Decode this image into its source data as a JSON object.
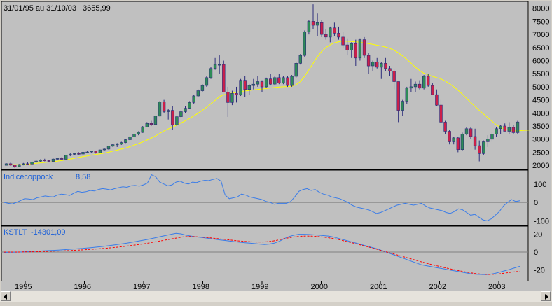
{
  "header": {
    "range_label": "31/01/95 au 31/10/03",
    "last_value": "3655,99"
  },
  "colors": {
    "plot_bg": "#c0c0c0",
    "candle_up": "#2e8b57",
    "candle_down": "#cc1f4a",
    "candle_wick": "#2b2b7a",
    "ma_line": "#ffff00",
    "indicator_line": "#3a7ce8",
    "signal_line": "#ff0000",
    "zero_line": "#808080"
  },
  "chart_data": [
    {
      "type": "candlestick",
      "name_label": "",
      "x_axis": {
        "tick_labels": [
          "1995",
          "1996",
          "1997",
          "1998",
          "1999",
          "2000",
          "2001",
          "2002",
          "2003"
        ]
      },
      "y_axis": {
        "tick_labels": [
          "8000",
          "7500",
          "7000",
          "6500",
          "6000",
          "5500",
          "5000",
          "4500",
          "4000",
          "3500",
          "3000",
          "2500",
          "2000"
        ],
        "ylim": [
          1950,
          8100
        ]
      },
      "candles": [
        [
          2000,
          2080,
          2000,
          2060
        ],
        [
          2060,
          2100,
          1980,
          2010
        ],
        [
          2010,
          1980,
          1900,
          1950
        ],
        [
          1950,
          2050,
          1930,
          2030
        ],
        [
          2030,
          2090,
          2000,
          2060
        ],
        [
          2060,
          2120,
          2010,
          2050
        ],
        [
          2050,
          2150,
          2040,
          2130
        ],
        [
          2130,
          2200,
          2100,
          2160
        ],
        [
          2160,
          2230,
          2120,
          2200
        ],
        [
          2200,
          2250,
          2150,
          2180
        ],
        [
          2180,
          2210,
          2120,
          2150
        ],
        [
          2150,
          2260,
          2140,
          2240
        ],
        [
          2240,
          2290,
          2200,
          2260
        ],
        [
          2260,
          2310,
          2220,
          2230
        ],
        [
          2230,
          2400,
          2220,
          2390
        ],
        [
          2390,
          2460,
          2350,
          2420
        ],
        [
          2420,
          2470,
          2380,
          2450
        ],
        [
          2450,
          2500,
          2410,
          2430
        ],
        [
          2430,
          2520,
          2400,
          2500
        ],
        [
          2500,
          2550,
          2460,
          2510
        ],
        [
          2510,
          2560,
          2470,
          2540
        ],
        [
          2540,
          2560,
          2450,
          2480
        ],
        [
          2480,
          2600,
          2470,
          2590
        ],
        [
          2590,
          2660,
          2560,
          2620
        ],
        [
          2620,
          2750,
          2600,
          2730
        ],
        [
          2730,
          2820,
          2700,
          2790
        ],
        [
          2790,
          2850,
          2700,
          2810
        ],
        [
          2810,
          2900,
          2780,
          2870
        ],
        [
          2870,
          3000,
          2850,
          2980
        ],
        [
          2980,
          3120,
          2950,
          3090
        ],
        [
          3090,
          3220,
          3050,
          3200
        ],
        [
          3200,
          3300,
          3150,
          3260
        ],
        [
          3260,
          3500,
          3240,
          3470
        ],
        [
          3470,
          3650,
          3450,
          3600
        ],
        [
          3600,
          3700,
          3500,
          3560
        ],
        [
          3560,
          3900,
          3550,
          3880
        ],
        [
          3880,
          4450,
          3870,
          4420
        ],
        [
          4420,
          4500,
          4000,
          4050
        ],
        [
          4050,
          4150,
          3750,
          4100
        ],
        [
          4100,
          4250,
          3350,
          3550
        ],
        [
          3550,
          3900,
          3500,
          3860
        ],
        [
          3860,
          4100,
          3800,
          4050
        ],
        [
          4050,
          4250,
          4000,
          4180
        ],
        [
          4180,
          4450,
          4150,
          4400
        ],
        [
          4400,
          4700,
          4350,
          4650
        ],
        [
          4650,
          4900,
          4600,
          4850
        ],
        [
          4850,
          5100,
          4800,
          5050
        ],
        [
          5050,
          5400,
          5000,
          5350
        ],
        [
          5350,
          5750,
          5300,
          5700
        ],
        [
          5700,
          6100,
          5650,
          5850
        ],
        [
          5850,
          6200,
          5500,
          5850
        ],
        [
          5850,
          6000,
          4800,
          4800
        ],
        [
          4800,
          5000,
          3850,
          4400
        ],
        [
          4400,
          4850,
          4300,
          4750
        ],
        [
          4750,
          5000,
          4400,
          4700
        ],
        [
          4700,
          5300,
          4650,
          5250
        ],
        [
          5250,
          5400,
          4600,
          4900
        ],
        [
          4900,
          5100,
          4700,
          5050
        ],
        [
          5050,
          5300,
          4900,
          5100
        ],
        [
          5100,
          5400,
          5000,
          5200
        ],
        [
          5200,
          5250,
          4800,
          5000
        ],
        [
          5000,
          5350,
          4950,
          5300
        ],
        [
          5300,
          5500,
          5050,
          5100
        ],
        [
          5100,
          5400,
          5050,
          5350
        ],
        [
          5350,
          5500,
          5100,
          5150
        ],
        [
          5150,
          5400,
          5100,
          5350
        ],
        [
          5350,
          5400,
          5000,
          5050
        ],
        [
          5050,
          5450,
          5000,
          5400
        ],
        [
          5400,
          5950,
          5350,
          5900
        ],
        [
          5900,
          6250,
          5850,
          6200
        ],
        [
          6200,
          7150,
          6150,
          7100
        ],
        [
          7100,
          7550,
          7000,
          7500
        ],
        [
          7500,
          8150,
          7200,
          7350
        ],
        [
          7350,
          7800,
          6950,
          7450
        ],
        [
          7450,
          7550,
          6900,
          7000
        ],
        [
          7000,
          7200,
          6800,
          6900
        ],
        [
          6900,
          7300,
          6700,
          7250
        ],
        [
          7250,
          7450,
          6950,
          7050
        ],
        [
          7050,
          7300,
          6800,
          6900
        ],
        [
          6900,
          7100,
          6500,
          6600
        ],
        [
          6600,
          6850,
          6200,
          6400
        ],
        [
          6400,
          6700,
          6100,
          6650
        ],
        [
          6650,
          6800,
          5800,
          6100
        ],
        [
          6100,
          6850,
          6000,
          6800
        ],
        [
          6800,
          6900,
          6100,
          6200
        ],
        [
          6200,
          6300,
          5500,
          5800
        ],
        [
          5800,
          6000,
          5600,
          5950
        ],
        [
          5950,
          6100,
          5700,
          5750
        ],
        [
          5750,
          5950,
          5300,
          5900
        ],
        [
          5900,
          6100,
          5600,
          5700
        ],
        [
          5700,
          5800,
          5400,
          5600
        ],
        [
          5600,
          5650,
          4900,
          5200
        ],
        [
          5200,
          5200,
          3650,
          4100
        ],
        [
          4100,
          4500,
          3900,
          4450
        ],
        [
          4450,
          5000,
          4350,
          4950
        ],
        [
          4950,
          5300,
          4800,
          5000
        ],
        [
          5000,
          5200,
          4800,
          5100
        ],
        [
          5100,
          5250,
          4900,
          4950
        ],
        [
          4950,
          5450,
          4900,
          5400
        ],
        [
          5400,
          5500,
          5000,
          5050
        ],
        [
          5050,
          5150,
          4700,
          4700
        ],
        [
          4700,
          4900,
          4250,
          4300
        ],
        [
          4300,
          4500,
          3600,
          3650
        ],
        [
          3650,
          3700,
          3200,
          3300
        ],
        [
          3300,
          3350,
          2800,
          2900
        ],
        [
          2900,
          3100,
          2800,
          3050
        ],
        [
          3050,
          3100,
          2500,
          2600
        ],
        [
          2600,
          3250,
          2550,
          3200
        ],
        [
          3200,
          3450,
          3150,
          3400
        ],
        [
          3400,
          3450,
          3000,
          3100
        ],
        [
          3100,
          3400,
          2600,
          2750
        ],
        [
          2750,
          2950,
          2150,
          2450
        ],
        [
          2450,
          2950,
          2400,
          2900
        ],
        [
          2900,
          3150,
          2700,
          3000
        ],
        [
          3000,
          3250,
          2900,
          3200
        ],
        [
          3200,
          3450,
          3100,
          3400
        ],
        [
          3400,
          3550,
          3200,
          3500
        ],
        [
          3500,
          3600,
          3300,
          3300
        ],
        [
          3300,
          3650,
          3200,
          3450
        ],
        [
          3450,
          3550,
          3200,
          3250
        ],
        [
          3250,
          3700,
          3200,
          3656
        ]
      ],
      "moving_average": [
        2020,
        2025,
        2022,
        2025,
        2030,
        2040,
        2055,
        2075,
        2095,
        2110,
        2125,
        2140,
        2160,
        2180,
        2210,
        2240,
        2270,
        2300,
        2330,
        2360,
        2390,
        2415,
        2440,
        2465,
        2500,
        2540,
        2580,
        2620,
        2665,
        2715,
        2770,
        2830,
        2895,
        2965,
        3040,
        3120,
        3220,
        3310,
        3390,
        3460,
        3540,
        3620,
        3700,
        3790,
        3890,
        3990,
        4100,
        4220,
        4350,
        4480,
        4620,
        4700,
        4720,
        4760,
        4790,
        4820,
        4840,
        4860,
        4880,
        4900,
        4915,
        4935,
        4955,
        4975,
        4990,
        5000,
        5010,
        5020,
        5080,
        5200,
        5400,
        5650,
        5900,
        6150,
        6350,
        6500,
        6600,
        6680,
        6720,
        6740,
        6740,
        6730,
        6720,
        6700,
        6680,
        6650,
        6620,
        6590,
        6560,
        6520,
        6470,
        6400,
        6300,
        6180,
        6050,
        5900,
        5750,
        5620,
        5520,
        5460,
        5400,
        5350,
        5300,
        5220,
        5120,
        5000,
        4870,
        4720,
        4560,
        4400,
        4250,
        4100,
        3960,
        3820,
        3680,
        3550,
        3450,
        3380,
        3340,
        3320,
        3320,
        3330,
        3340,
        3350,
        3360
      ]
    },
    {
      "type": "line",
      "name_label": "Indicecoppock",
      "value_label": "8,58",
      "y_axis": {
        "tick_labels": [
          "100",
          "0",
          "-100"
        ],
        "ylim": [
          -110,
          160
        ]
      },
      "values": [
        0,
        -5,
        -8,
        0,
        10,
        20,
        18,
        15,
        25,
        30,
        35,
        32,
        30,
        40,
        45,
        42,
        38,
        50,
        60,
        55,
        58,
        65,
        62,
        70,
        75,
        72,
        68,
        75,
        80,
        85,
        82,
        90,
        92,
        88,
        95,
        105,
        150,
        140,
        110,
        100,
        90,
        95,
        110,
        115,
        105,
        100,
        110,
        108,
        115,
        120,
        118,
        125,
        130,
        115,
        40,
        20,
        25,
        30,
        45,
        40,
        30,
        25,
        20,
        15,
        5,
        0,
        -10,
        -5,
        -5,
        -5,
        5,
        30,
        60,
        70,
        75,
        65,
        70,
        55,
        45,
        40,
        30,
        25,
        20,
        10,
        0,
        -15,
        -25,
        -30,
        -35,
        -40,
        -50,
        -60,
        -55,
        -45,
        -35,
        -25,
        -15,
        -10,
        -5,
        -10,
        -15,
        -10,
        -5,
        -20,
        -30,
        -35,
        -40,
        -45,
        -55,
        -60,
        -50,
        -35,
        -40,
        -55,
        -70,
        -65,
        -80,
        -95,
        -100,
        -90,
        -70,
        -50,
        -20,
        0,
        15,
        5,
        8.58
      ],
      "zero_line": true
    },
    {
      "type": "line",
      "name_label": "KSTLT",
      "value_label": "-14301,09",
      "y_axis": {
        "tick_labels": [
          "20",
          "0",
          "-20"
        ],
        "ylim": [
          -30,
          26
        ]
      },
      "series": [
        {
          "name": "",
          "values": [
            -0.5,
            -0.3,
            -0.2,
            0,
            0.2,
            0.5,
            0.8,
            1,
            1.3,
            1.6,
            1.9,
            2.2,
            2.5,
            2.9,
            3.3,
            3.7,
            4.1,
            4.6,
            5.1,
            5.7,
            6.3,
            7,
            7.7,
            8.5,
            9.3,
            10.1,
            11,
            12,
            13,
            14,
            15.2,
            16.4,
            17.6,
            18.8,
            20,
            21,
            20.5,
            19,
            18,
            17.2,
            16.5,
            15.8,
            15,
            14.3,
            13.6,
            13,
            12.3,
            11.6,
            11,
            10.5,
            10,
            9.5,
            9,
            8.5,
            9,
            10,
            12,
            15,
            17.5,
            19,
            20,
            20,
            19.8,
            19.4,
            19,
            18.5,
            18,
            17,
            15.5,
            14,
            12.5,
            11,
            9.5,
            8,
            6.5,
            5,
            3.5,
            1.5,
            -0.5,
            -2.5,
            -4.5,
            -6.5,
            -8.5,
            -10.5,
            -12.5,
            -14.5,
            -15.5,
            -16.5,
            -17.5,
            -18.5,
            -19.5,
            -20.5,
            -21.5,
            -22.5,
            -23.5,
            -24.5,
            -25,
            -25.3,
            -25.5,
            -25,
            -24,
            -22.5,
            -21,
            -19.5,
            -17.8,
            -16
          ]
        },
        {
          "name": "",
          "values": [
            0,
            0,
            0,
            0,
            0.1,
            0.2,
            0.3,
            0.4,
            0.5,
            0.7,
            0.9,
            1.1,
            1.3,
            1.6,
            1.9,
            2.2,
            2.5,
            2.8,
            3.2,
            3.6,
            4,
            4.5,
            5,
            5.6,
            6.2,
            6.9,
            7.6,
            8.3,
            9.1,
            10,
            11,
            12,
            13,
            14,
            15,
            16,
            17,
            17.5,
            17.5,
            17.2,
            16.8,
            16.3,
            15.7,
            15.1,
            14.5,
            13.9,
            13.3,
            12.7,
            12.2,
            11.8,
            11.5,
            11.3,
            11.3,
            11.6,
            12.2,
            13.2,
            14.4,
            15.6,
            16.6,
            17.3,
            17.8,
            18,
            17.9,
            17.6,
            17.1,
            16.4,
            15.6,
            14.6,
            13.4,
            12,
            10.6,
            9.2,
            7.8,
            6.4,
            4.9,
            3.4,
            1.9,
            0.3,
            -1.3,
            -2.9,
            -4.5,
            -6,
            -7.6,
            -9.2,
            -10.8,
            -12.3,
            -13.8,
            -15.2,
            -16.5,
            -17.8,
            -19,
            -20.2,
            -21.3,
            -22.4,
            -23.4,
            -24.2,
            -24.8,
            -25.2,
            -25.3,
            -25,
            -24.5,
            -23.8,
            -23,
            -22.3,
            -21.7
          ]
        }
      ],
      "zero_line": true
    }
  ]
}
